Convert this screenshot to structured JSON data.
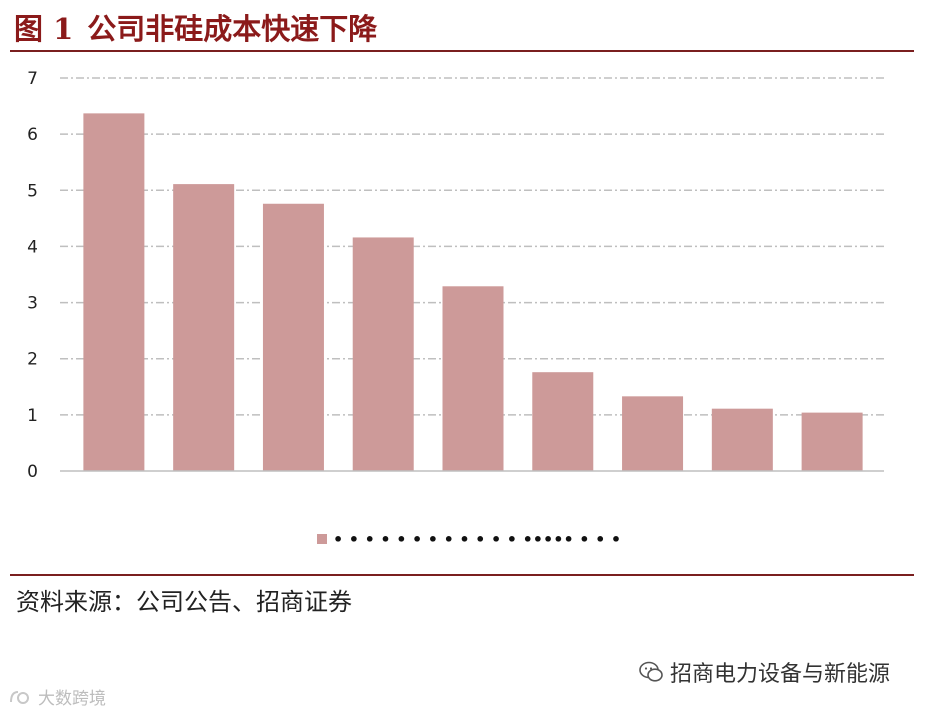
{
  "figure": {
    "number": "图 1",
    "title": "公司非硅成本快速下降"
  },
  "source_note": "资料来源：公司公告、招商证券",
  "watermark_right": "招商电力设备与新能源",
  "watermark_left": "大数跨境",
  "legend_label": "• • • • • • • • • • • • ••••• • • •",
  "colors": {
    "bar": "#cd9a99",
    "title": "#8b1a1a",
    "rule": "#7a1f1f",
    "grid": "#bfbfbf"
  },
  "chart_data": {
    "type": "bar",
    "categories": [
      "",
      "",
      "",
      "",
      "",
      "",
      "",
      "",
      ""
    ],
    "values": [
      6.37,
      5.11,
      4.76,
      4.16,
      3.29,
      1.76,
      1.33,
      1.11,
      1.04
    ],
    "ylim": [
      0,
      7
    ],
    "yticks": [
      "0",
      "1",
      "2",
      "3",
      "4",
      "5",
      "6",
      "7"
    ],
    "grid": true,
    "legend_position": "bottom"
  }
}
